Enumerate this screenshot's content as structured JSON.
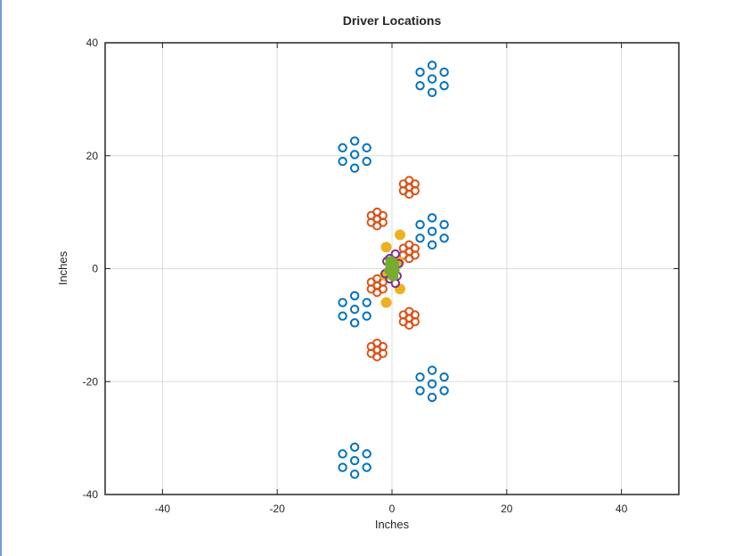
{
  "chart_data": {
    "type": "scatter",
    "title": "Driver Locations",
    "xlabel": "Inches",
    "ylabel": "Inches",
    "xlim": [
      -50,
      50
    ],
    "ylim": [
      -40,
      40
    ],
    "xticks": [
      -40,
      -20,
      0,
      20,
      40
    ],
    "yticks": [
      -40,
      -20,
      0,
      20,
      40
    ],
    "xtick_labels": [
      "-40",
      "-20",
      "0",
      "20",
      "40"
    ],
    "ytick_labels": [
      "-40",
      "-20",
      "0",
      "20",
      "40"
    ],
    "grid": true,
    "series": [
      {
        "color": "#0072BD",
        "marker": "open-circle",
        "x": [
          7.0,
          9.1,
          9.1,
          7.0,
          4.9,
          4.9,
          7.0,
          -6.5,
          -4.4,
          -4.4,
          -6.5,
          -8.6,
          -8.6,
          -6.5,
          7.0,
          9.1,
          9.1,
          7.0,
          4.9,
          4.9,
          7.0,
          -6.5,
          -4.4,
          -4.4,
          -6.5,
          -8.6,
          -8.6,
          -6.5,
          7.0,
          9.1,
          9.1,
          7.0,
          4.9,
          4.9,
          7.0,
          -6.5,
          -4.4,
          -4.4,
          -6.5,
          -8.6,
          -8.6,
          -6.5
        ],
        "y": [
          36.0,
          34.8,
          32.4,
          31.2,
          32.4,
          34.8,
          33.6,
          22.6,
          21.4,
          19.0,
          17.8,
          19.0,
          21.4,
          20.2,
          9.0,
          7.8,
          5.4,
          4.2,
          5.4,
          7.8,
          6.6,
          -4.8,
          -6.0,
          -8.4,
          -9.6,
          -8.4,
          -6.0,
          -7.2,
          -18.0,
          -19.2,
          -21.6,
          -22.8,
          -21.6,
          -19.2,
          -20.4,
          -31.6,
          -32.8,
          -35.2,
          -36.4,
          -35.2,
          -32.8,
          -34.0
        ]
      },
      {
        "color": "#D95319",
        "marker": "open-circle",
        "x": [
          3.0,
          4.0,
          4.0,
          3.0,
          2.0,
          2.0,
          3.0,
          -2.6,
          -1.6,
          -1.6,
          -2.6,
          -3.6,
          -3.6,
          -2.6,
          3.0,
          4.0,
          4.0,
          3.0,
          2.0,
          2.0,
          3.0,
          -2.6,
          -1.6,
          -1.6,
          -2.6,
          -3.6,
          -3.6,
          -2.6,
          3.0,
          4.0,
          4.0,
          3.0,
          2.0,
          2.0,
          3.0,
          -2.6,
          -1.6,
          -1.6,
          -2.6,
          -3.6,
          -3.6,
          -2.6
        ],
        "y": [
          15.6,
          15.0,
          13.8,
          13.2,
          13.8,
          15.0,
          14.4,
          10.0,
          9.4,
          8.2,
          7.6,
          8.2,
          9.4,
          8.8,
          4.2,
          3.6,
          2.4,
          1.8,
          2.4,
          3.6,
          3.0,
          -1.8,
          -2.4,
          -3.6,
          -4.2,
          -3.6,
          -2.4,
          -3.0,
          -7.6,
          -8.2,
          -9.4,
          -10.0,
          -9.4,
          -8.2,
          -8.8,
          -13.2,
          -13.8,
          -15.0,
          -15.6,
          -15.0,
          -13.8,
          -14.4
        ]
      },
      {
        "color": "#EDB120",
        "marker": "filled-circle",
        "x": [
          1.4,
          -1.0,
          1.4,
          -1.0,
          1.2,
          -1.2
        ],
        "y": [
          6.0,
          3.8,
          -3.6,
          -6.0,
          1.2,
          -1.2
        ]
      },
      {
        "color": "#7E2F8E",
        "marker": "open-circle",
        "x": [
          0.6,
          -0.4,
          -0.4,
          0.6,
          1.2,
          -0.9,
          0.9,
          -1.2
        ],
        "y": [
          2.6,
          1.8,
          -1.8,
          -2.6,
          0.9,
          1.3,
          -1.3,
          -0.9
        ]
      },
      {
        "color": "#77AC30",
        "marker": "filled-circle",
        "x": [
          0.0,
          0.3,
          -0.3,
          0.0,
          0.4,
          -0.4,
          0.2,
          -0.2
        ],
        "y": [
          0.0,
          0.8,
          0.8,
          -0.8,
          -0.3,
          -0.3,
          -1.3,
          1.3
        ]
      }
    ]
  }
}
